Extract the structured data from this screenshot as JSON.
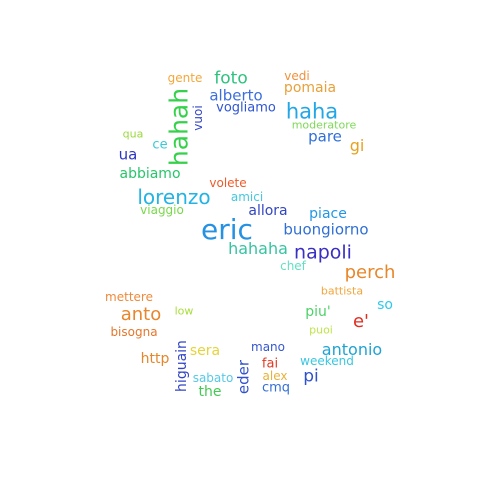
{
  "words": [
    {
      "text": "gente",
      "color": "#f3a73a"
    },
    {
      "text": "foto",
      "color": "#2ec27e"
    },
    {
      "text": "vedi",
      "color": "#f0913a"
    },
    {
      "text": "pomaia",
      "color": "#e8a13a"
    },
    {
      "text": "hahah",
      "color": "#35d14b"
    },
    {
      "text": "alberto",
      "color": "#3d6ee0"
    },
    {
      "text": "vuoi",
      "color": "#3447c7"
    },
    {
      "text": "vogliamo",
      "color": "#2f55d4"
    },
    {
      "text": "haha",
      "color": "#21a6e8"
    },
    {
      "text": "moderatore",
      "color": "#7ed957"
    },
    {
      "text": "qua",
      "color": "#9bd83c"
    },
    {
      "text": "ce",
      "color": "#38c9d6"
    },
    {
      "text": "pare",
      "color": "#2f6fd9"
    },
    {
      "text": "gi",
      "color": "#e6a21f"
    },
    {
      "text": "ua",
      "color": "#2c36c2"
    },
    {
      "text": "abbiamo",
      "color": "#29c46b"
    },
    {
      "text": "volete",
      "color": "#ef5a2a"
    },
    {
      "text": "amici",
      "color": "#44c9e0"
    },
    {
      "text": "lorenzo",
      "color": "#24b3e2"
    },
    {
      "text": "viaggio",
      "color": "#79d84a"
    },
    {
      "text": "allora",
      "color": "#3146c4"
    },
    {
      "text": "piace",
      "color": "#2196e8"
    },
    {
      "text": "eric",
      "color": "#2591e2"
    },
    {
      "text": "buongiorno",
      "color": "#2f6fd6"
    },
    {
      "text": "hahaha",
      "color": "#37c3a2"
    },
    {
      "text": "napoli",
      "color": "#3a2fc2"
    },
    {
      "text": "chef",
      "color": "#63e0c1"
    },
    {
      "text": "perch",
      "color": "#e8862a"
    },
    {
      "text": "battista",
      "color": "#f2a63c"
    },
    {
      "text": "mettere",
      "color": "#ef8a3a"
    },
    {
      "text": "so",
      "color": "#2fc9e8"
    },
    {
      "text": "low",
      "color": "#a8de3a"
    },
    {
      "text": "anto",
      "color": "#e9852b"
    },
    {
      "text": "piu'",
      "color": "#4fd16a"
    },
    {
      "text": "e'",
      "color": "#e22c1f"
    },
    {
      "text": "bisogna",
      "color": "#e5762b"
    },
    {
      "text": "puoi",
      "color": "#bfe44a"
    },
    {
      "text": "higuain",
      "color": "#3345c7"
    },
    {
      "text": "mano",
      "color": "#3557d1"
    },
    {
      "text": "antonio",
      "color": "#1fa3d3"
    },
    {
      "text": "http",
      "color": "#e5862b"
    },
    {
      "text": "sera",
      "color": "#e6d33a"
    },
    {
      "text": "eder",
      "color": "#3150cc"
    },
    {
      "text": "fai",
      "color": "#e23a24"
    },
    {
      "text": "weekend",
      "color": "#39c7e0"
    },
    {
      "text": "pi",
      "color": "#2f52cc"
    },
    {
      "text": "sabato",
      "color": "#55c9e6"
    },
    {
      "text": "alex",
      "color": "#e6b23a"
    },
    {
      "text": "the",
      "color": "#44c955"
    },
    {
      "text": "cmq",
      "color": "#3370d6"
    }
  ]
}
